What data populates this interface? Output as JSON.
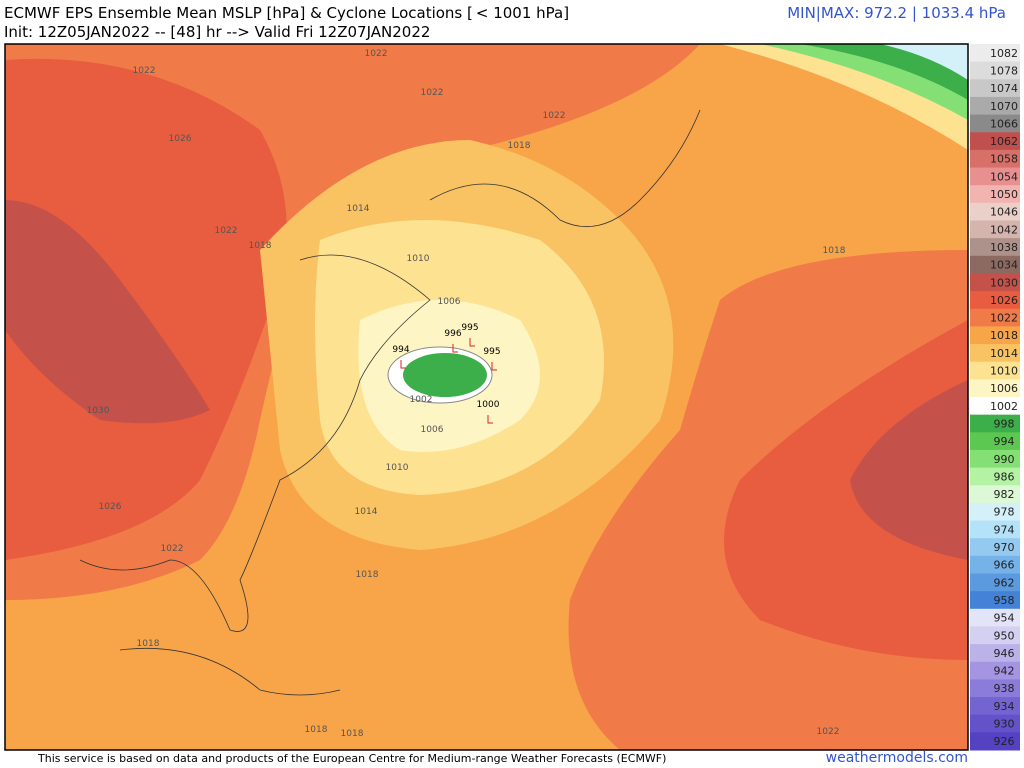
{
  "header": {
    "title": "ECMWF EPS Ensemble Mean MSLP [hPa] & Cyclone Locations [ < 1001 hPa]",
    "subtitle": "Init: 12Z05JAN2022 -- [48] hr --> Valid Fri 12Z07JAN2022",
    "minmax": "MIN|MAX: 972.2 | 1033.4 hPa"
  },
  "colorbar": {
    "labels": [
      1082,
      1078,
      1074,
      1070,
      1066,
      1062,
      1058,
      1054,
      1050,
      1046,
      1042,
      1038,
      1034,
      1030,
      1026,
      1022,
      1018,
      1014,
      1010,
      1006,
      1002,
      998,
      994,
      990,
      986,
      982,
      978,
      974,
      970,
      966,
      962,
      958,
      954,
      950,
      946,
      942,
      938,
      934,
      930,
      926
    ],
    "colors": [
      "#ececec",
      "#dcdcdc",
      "#c8c8c8",
      "#aaaaaa",
      "#8a8a8a",
      "#c0504d",
      "#d8706a",
      "#e89090",
      "#f2b4b0",
      "#ead0c8",
      "#d4b4ac",
      "#ac928a",
      "#8c6a62",
      "#c4524a",
      "#e85c40",
      "#f07a48",
      "#f8a448",
      "#f9c262",
      "#fde292",
      "#fef5c4",
      "#ffffff",
      "#3cae4a",
      "#5cc852",
      "#84e074",
      "#b4f2a4",
      "#dcf8d4",
      "#d4f0f8",
      "#b4e2f8",
      "#94caf0",
      "#74b2e8",
      "#5c9ae0",
      "#4482d8",
      "#e4e4f8",
      "#d4d0f2",
      "#bcb2ea",
      "#a494e2",
      "#8c7cda",
      "#7464d2",
      "#6452ca",
      "#5442c2"
    ]
  },
  "contour_labels": [
    "1022",
    "1022",
    "1022",
    "1022",
    "1026",
    "1018",
    "1014",
    "1022",
    "1018",
    "1010",
    "1018",
    "1006",
    "1002",
    "1006",
    "1010",
    "1014",
    "1030",
    "1026",
    "1022",
    "1018",
    "1018",
    "1018",
    "1018",
    "1022"
  ],
  "cyclone_labels": [
    "995",
    "994",
    "995",
    "1000",
    "996"
  ],
  "footer": {
    "credit": "This service is based on data and products of the European Centre for Medium-range Weather Forecasts (ECMWF)",
    "site": "weathermodels.com"
  }
}
